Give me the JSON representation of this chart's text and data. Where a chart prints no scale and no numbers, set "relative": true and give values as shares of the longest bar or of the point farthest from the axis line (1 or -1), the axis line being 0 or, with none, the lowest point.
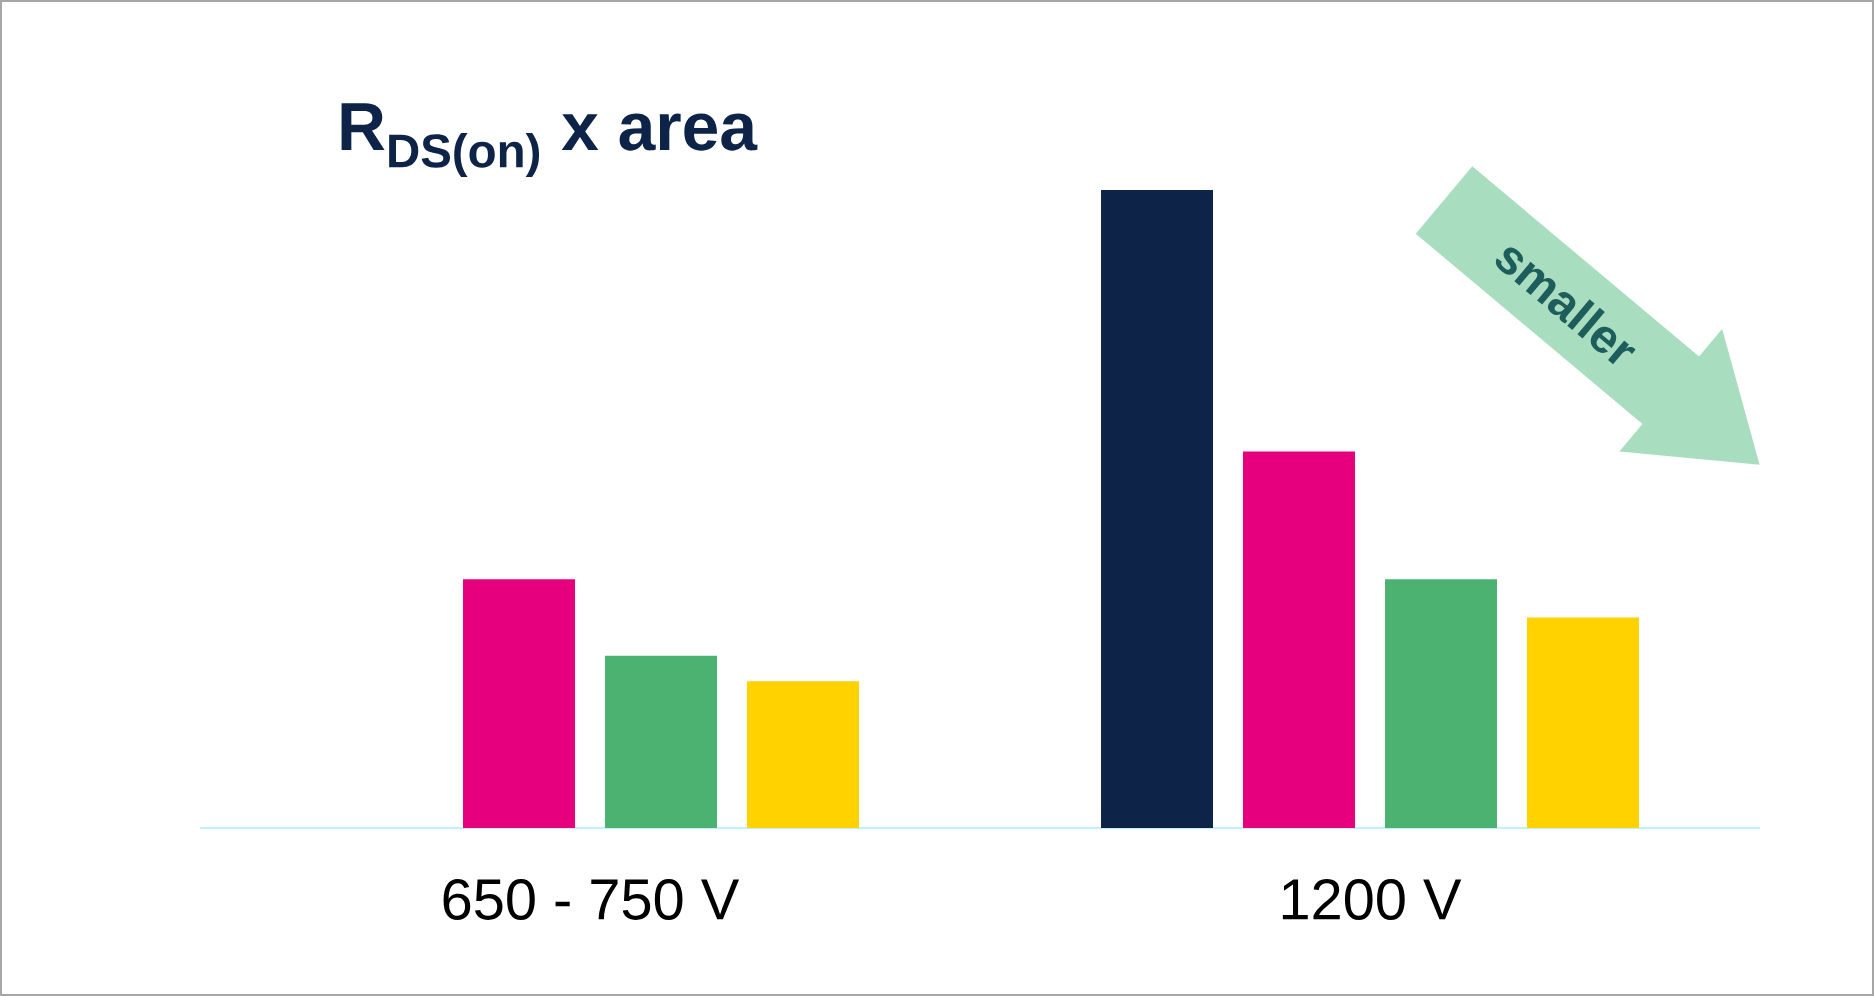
{
  "chart_data": {
    "type": "bar",
    "title": "R$_{DS(on)}$ x area",
    "relative": true,
    "categories": [
      "650 - 750 V",
      "1200 V"
    ],
    "series": [
      {
        "color": "#0d2348",
        "values": [
          null,
          1
        ]
      },
      {
        "color": "#e6007e",
        "values": [
          0.39,
          0.59
        ]
      },
      {
        "color": "#4bb272",
        "values": [
          0.27,
          0.39
        ]
      },
      {
        "color": "#ffd200",
        "values": [
          0.23,
          0.33
        ]
      }
    ],
    "annotations": [
      "smaller"
    ]
  }
}
